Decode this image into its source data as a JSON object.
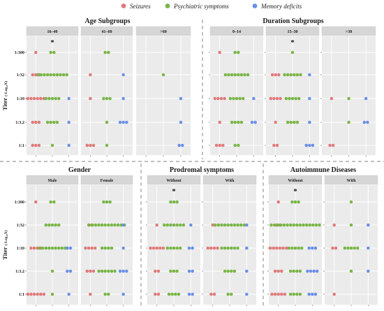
{
  "legend": [
    {
      "label": "Seizures",
      "color": "#E07A7A"
    },
    {
      "label": "Psychiatric symptoms",
      "color": "#7AB648"
    },
    {
      "label": "Memory deficits",
      "color": "#6B8FE8"
    }
  ],
  "ylabel": "Titer",
  "ylabel_sub": "(-Log₁₀X)",
  "titer_levels": [
    "1:100",
    "1:32",
    "1:10",
    "1:3.2",
    "1:1"
  ],
  "chart_data": [
    {
      "type": "scatter",
      "title": "Age Subgroups",
      "panels": [
        {
          "label": "16–40",
          "star": true,
          "counts": {
            "1:100": [
              1,
              2,
              0
            ],
            "1:32": [
              3,
              10,
              0
            ],
            "1:10": [
              6,
              5,
              1
            ],
            "1:3.2": [
              3,
              4,
              1
            ],
            "1:1": [
              3,
              1,
              1
            ]
          }
        },
        {
          "label": "41–60",
          "star": false,
          "counts": {
            "1:100": [
              0,
              2,
              0
            ],
            "1:32": [
              1,
              0,
              1
            ],
            "1:10": [
              1,
              3,
              1
            ],
            "1:3.2": [
              0,
              1,
              3
            ],
            "1:1": [
              3,
              1,
              0
            ]
          }
        },
        {
          "label": ">60",
          "star": false,
          "counts": {
            "1:100": [
              0,
              0,
              0
            ],
            "1:32": [
              0,
              1,
              0
            ],
            "1:10": [
              0,
              0,
              1
            ],
            "1:3.2": [
              0,
              0,
              1
            ],
            "1:1": [
              0,
              0,
              2
            ]
          }
        }
      ]
    },
    {
      "type": "scatter",
      "title": "Duration Subgroups",
      "panels": [
        {
          "label": "0–14",
          "star": false,
          "counts": {
            "1:100": [
              1,
              2,
              0
            ],
            "1:32": [
              0,
              8,
              0
            ],
            "1:10": [
              4,
              5,
              1
            ],
            "1:3.2": [
              1,
              4,
              2
            ],
            "1:1": [
              3,
              2,
              0
            ]
          }
        },
        {
          "label": "15–30",
          "star": true,
          "counts": {
            "1:100": [
              0,
              1,
              0
            ],
            "1:32": [
              3,
              6,
              1
            ],
            "1:10": [
              4,
              5,
              1
            ],
            "1:3.2": [
              1,
              4,
              1
            ],
            "1:1": [
              2,
              0,
              3
            ]
          }
        },
        {
          "label": ">30",
          "star": false,
          "counts": {
            "1:100": [
              0,
              0,
              0
            ],
            "1:32": [
              0,
              0,
              0
            ],
            "1:10": [
              1,
              1,
              1
            ],
            "1:3.2": [
              0,
              1,
              2
            ],
            "1:1": [
              2,
              0,
              0
            ]
          }
        }
      ]
    },
    {
      "type": "scatter",
      "title": "Gender",
      "panels": [
        {
          "label": "Male",
          "star": false,
          "counts": {
            "1:100": [
              1,
              2,
              0
            ],
            "1:32": [
              0,
              5,
              0
            ],
            "1:10": [
              4,
              9,
              2
            ],
            "1:3.2": [
              0,
              1,
              2
            ],
            "1:1": [
              6,
              1,
              1
            ]
          }
        },
        {
          "label": "Female",
          "star": false,
          "counts": {
            "1:100": [
              0,
              3,
              0
            ],
            "1:32": [
              2,
              12,
              1
            ],
            "1:10": [
              4,
              4,
              1
            ],
            "1:3.2": [
              3,
              6,
              3
            ],
            "1:1": [
              1,
              2,
              1
            ]
          }
        }
      ]
    },
    {
      "type": "scatter",
      "title": "Prodromal symptoms",
      "panels": [
        {
          "label": "Without",
          "star": true,
          "counts": {
            "1:100": [
              0,
              3,
              0
            ],
            "1:32": [
              1,
              7,
              1
            ],
            "1:10": [
              5,
              5,
              2
            ],
            "1:3.2": [
              2,
              3,
              2
            ],
            "1:1": [
              2,
              4,
              2
            ]
          }
        },
        {
          "label": "With",
          "star": false,
          "counts": {
            "1:100": [
              0,
              0,
              0
            ],
            "1:32": [
              1,
              10,
              1
            ],
            "1:10": [
              4,
              6,
              1
            ],
            "1:3.2": [
              0,
              4,
              1
            ],
            "1:1": [
              2,
              2,
              1
            ]
          }
        }
      ]
    },
    {
      "type": "scatter",
      "title": "Autoimmune Diseases",
      "panels": [
        {
          "label": "Without",
          "star": true,
          "counts": {
            "1:100": [
              1,
              3,
              0
            ],
            "1:32": [
              2,
              16,
              0
            ],
            "1:10": [
              6,
              5,
              3
            ],
            "1:3.2": [
              3,
              4,
              4
            ],
            "1:1": [
              5,
              4,
              3
            ]
          }
        },
        {
          "label": "With",
          "star": false,
          "counts": {
            "1:100": [
              0,
              1,
              0
            ],
            "1:32": [
              1,
              1,
              1
            ],
            "1:10": [
              2,
              5,
              1
            ],
            "1:3.2": [
              0,
              1,
              1
            ],
            "1:1": [
              1,
              0,
              0
            ]
          }
        }
      ]
    }
  ]
}
